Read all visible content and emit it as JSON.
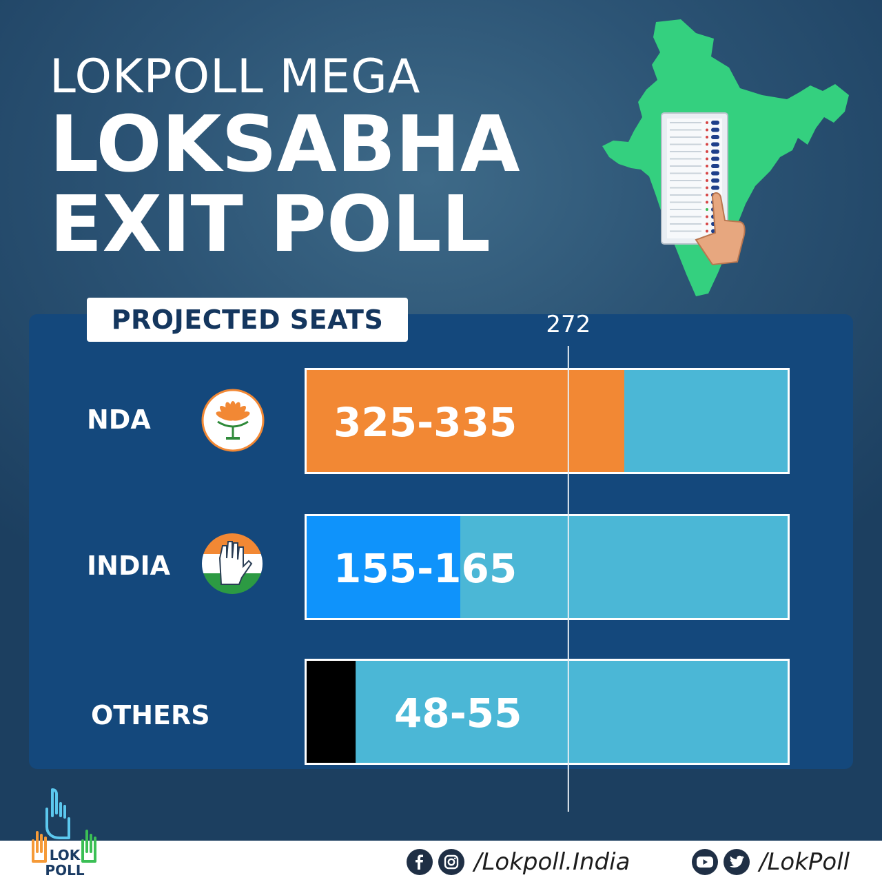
{
  "title": {
    "line1": "LOKPOLL MEGA",
    "line2": "LOKSABHA",
    "line3": "EXIT POLL"
  },
  "section_tag": "PROJECTED SEATS",
  "chart_data": {
    "type": "bar",
    "orientation": "horizontal",
    "reference_line": {
      "value": 272,
      "label": "272"
    },
    "xlim": [
      0,
      500
    ],
    "categories": [
      "NDA",
      "INDIA",
      "OTHERS"
    ],
    "series": [
      {
        "values": [
          330,
          160,
          51.5
        ],
        "ranges": [
          [
            325,
            335
          ],
          [
            155,
            165
          ],
          [
            48,
            55
          ]
        ],
        "range_labels": [
          "325-335",
          "155-165",
          "48-55"
        ]
      }
    ],
    "colors": [
      "#f28834",
      "#0f93fb",
      "#000000"
    ],
    "track_color": "#4bb7d6",
    "grid": false,
    "legend": "none"
  },
  "party_icons": [
    "bjp-lotus-icon",
    "congress-hand-icon",
    ""
  ],
  "brand": {
    "logo_text_top": "LOK",
    "logo_text_bottom": "POLL"
  },
  "social": {
    "group1": {
      "icons": [
        "facebook-icon",
        "instagram-icon"
      ],
      "handle": "/Lokpoll.India"
    },
    "group2": {
      "icons": [
        "youtube-icon",
        "twitter-icon"
      ],
      "handle": "/LokPoll"
    }
  }
}
